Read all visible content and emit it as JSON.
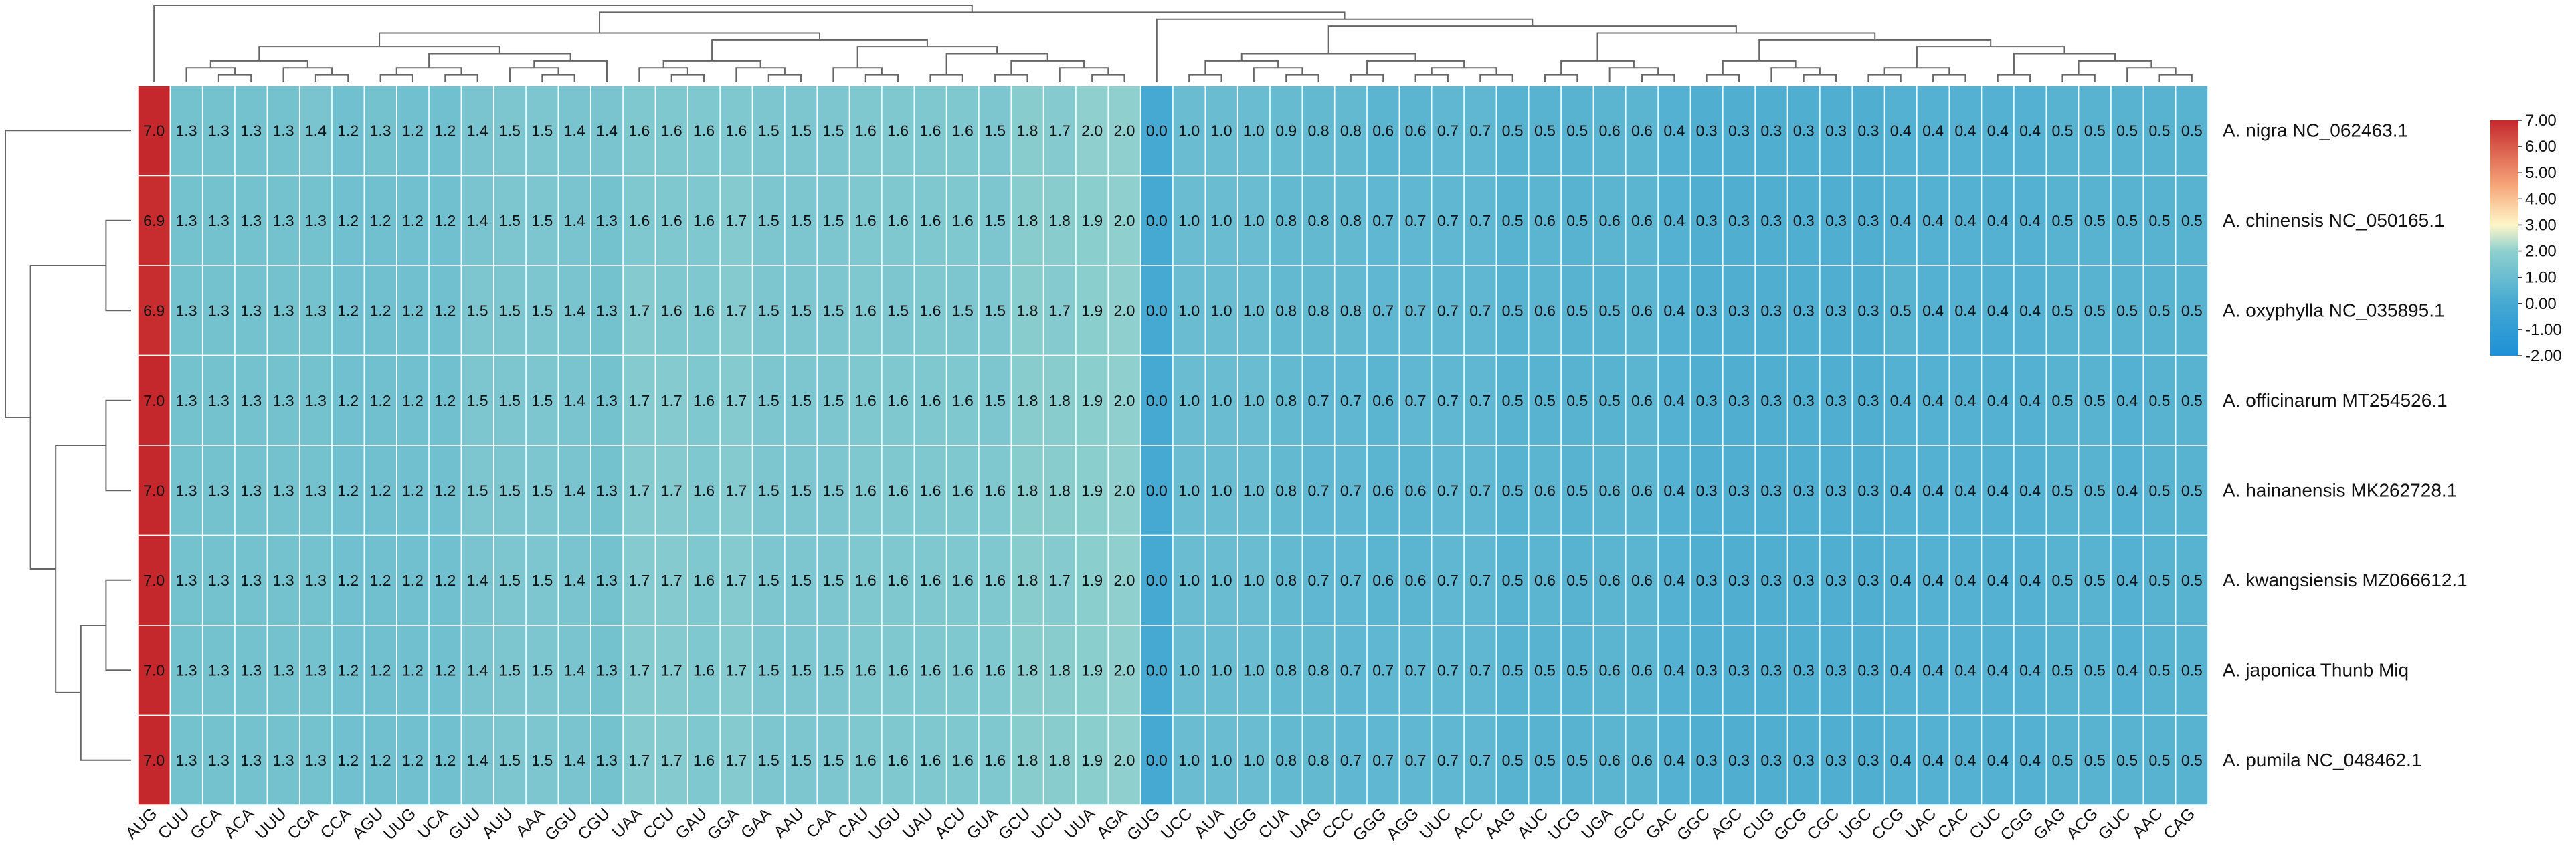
{
  "chart_data": {
    "type": "heatmap",
    "title": "",
    "xlabel": "",
    "ylabel": "",
    "columns": [
      "AUG",
      "CUU",
      "GCA",
      "ACA",
      "UUU",
      "CGA",
      "CCA",
      "AGU",
      "UUG",
      "UCA",
      "GUU",
      "AUU",
      "AAA",
      "GGU",
      "CGU",
      "UAA",
      "CCU",
      "GAU",
      "GGA",
      "GAA",
      "AAU",
      "CAA",
      "CAU",
      "UGU",
      "UAU",
      "ACU",
      "GUA",
      "GCU",
      "UCU",
      "UUA",
      "AGA",
      "GUG",
      "UCC",
      "AUA",
      "UGG",
      "CUA",
      "UAG",
      "CCC",
      "GGG",
      "AGG",
      "UUC",
      "ACC",
      "AAG",
      "AUC",
      "UCG",
      "UGA",
      "GCC",
      "GAC",
      "GGC",
      "AGC",
      "CUG",
      "GCG",
      "CGC",
      "UGC",
      "CCG",
      "UAC",
      "CAC",
      "CUC",
      "CGG",
      "GAG",
      "ACG",
      "GUC",
      "AAC",
      "CAG"
    ],
    "rows": [
      "A. nigra NC_062463.1",
      "A. chinensis NC_050165.1",
      "A. oxyphylla NC_035895.1",
      "A. officinarum MT254526.1",
      "A. hainanensis MK262728.1",
      "A. kwangsiensis MZ066612.1",
      "A. japonica Thunb Miq",
      "A. pumila NC_048462.1"
    ],
    "values": [
      [
        7.0,
        1.3,
        1.3,
        1.3,
        1.3,
        1.4,
        1.2,
        1.3,
        1.2,
        1.2,
        1.4,
        1.5,
        1.5,
        1.4,
        1.4,
        1.6,
        1.6,
        1.6,
        1.6,
        1.5,
        1.5,
        1.5,
        1.6,
        1.6,
        1.6,
        1.6,
        1.5,
        1.8,
        1.7,
        2.0,
        2.0,
        0.0,
        1.0,
        1.0,
        1.0,
        0.9,
        0.8,
        0.8,
        0.6,
        0.6,
        0.7,
        0.7,
        0.5,
        0.5,
        0.5,
        0.6,
        0.6,
        0.4,
        0.3,
        0.3,
        0.3,
        0.3,
        0.3,
        0.3,
        0.4,
        0.4,
        0.4,
        0.4,
        0.4,
        0.5,
        0.5,
        0.5,
        0.5,
        0.5
      ],
      [
        6.9,
        1.3,
        1.3,
        1.3,
        1.3,
        1.3,
        1.2,
        1.2,
        1.2,
        1.2,
        1.4,
        1.5,
        1.5,
        1.4,
        1.3,
        1.6,
        1.6,
        1.6,
        1.7,
        1.5,
        1.5,
        1.5,
        1.6,
        1.6,
        1.6,
        1.6,
        1.5,
        1.8,
        1.8,
        1.9,
        2.0,
        0.0,
        1.0,
        1.0,
        1.0,
        0.8,
        0.8,
        0.8,
        0.7,
        0.7,
        0.7,
        0.7,
        0.5,
        0.6,
        0.5,
        0.6,
        0.6,
        0.4,
        0.3,
        0.3,
        0.3,
        0.3,
        0.3,
        0.3,
        0.4,
        0.4,
        0.4,
        0.4,
        0.4,
        0.5,
        0.5,
        0.5,
        0.5,
        0.5
      ],
      [
        6.9,
        1.3,
        1.3,
        1.3,
        1.3,
        1.3,
        1.2,
        1.2,
        1.2,
        1.2,
        1.5,
        1.5,
        1.5,
        1.4,
        1.3,
        1.7,
        1.6,
        1.6,
        1.7,
        1.5,
        1.5,
        1.5,
        1.6,
        1.5,
        1.6,
        1.5,
        1.5,
        1.8,
        1.7,
        1.9,
        2.0,
        0.0,
        1.0,
        1.0,
        1.0,
        0.8,
        0.8,
        0.8,
        0.7,
        0.7,
        0.7,
        0.7,
        0.5,
        0.6,
        0.5,
        0.5,
        0.6,
        0.4,
        0.3,
        0.3,
        0.3,
        0.3,
        0.3,
        0.3,
        0.5,
        0.4,
        0.4,
        0.4,
        0.4,
        0.5,
        0.5,
        0.5,
        0.5,
        0.5
      ],
      [
        7.0,
        1.3,
        1.3,
        1.3,
        1.3,
        1.3,
        1.2,
        1.2,
        1.2,
        1.2,
        1.5,
        1.5,
        1.5,
        1.4,
        1.3,
        1.7,
        1.7,
        1.6,
        1.7,
        1.5,
        1.5,
        1.5,
        1.6,
        1.6,
        1.6,
        1.6,
        1.5,
        1.8,
        1.8,
        1.9,
        2.0,
        0.0,
        1.0,
        1.0,
        1.0,
        0.8,
        0.7,
        0.7,
        0.6,
        0.7,
        0.7,
        0.7,
        0.5,
        0.5,
        0.5,
        0.5,
        0.6,
        0.4,
        0.3,
        0.3,
        0.3,
        0.3,
        0.3,
        0.3,
        0.4,
        0.4,
        0.4,
        0.4,
        0.4,
        0.5,
        0.5,
        0.4,
        0.5,
        0.5
      ],
      [
        7.0,
        1.3,
        1.3,
        1.3,
        1.3,
        1.3,
        1.2,
        1.2,
        1.2,
        1.2,
        1.5,
        1.5,
        1.5,
        1.4,
        1.3,
        1.7,
        1.7,
        1.6,
        1.7,
        1.5,
        1.5,
        1.5,
        1.6,
        1.6,
        1.6,
        1.6,
        1.6,
        1.8,
        1.8,
        1.9,
        2.0,
        0.0,
        1.0,
        1.0,
        1.0,
        0.8,
        0.7,
        0.7,
        0.6,
        0.6,
        0.7,
        0.7,
        0.5,
        0.6,
        0.5,
        0.6,
        0.6,
        0.4,
        0.3,
        0.3,
        0.3,
        0.3,
        0.3,
        0.3,
        0.4,
        0.4,
        0.4,
        0.4,
        0.4,
        0.5,
        0.5,
        0.4,
        0.5,
        0.5
      ],
      [
        7.0,
        1.3,
        1.3,
        1.3,
        1.3,
        1.3,
        1.2,
        1.2,
        1.2,
        1.2,
        1.4,
        1.5,
        1.5,
        1.4,
        1.3,
        1.7,
        1.7,
        1.6,
        1.7,
        1.5,
        1.5,
        1.5,
        1.6,
        1.6,
        1.6,
        1.6,
        1.6,
        1.8,
        1.7,
        1.9,
        2.0,
        0.0,
        1.0,
        1.0,
        1.0,
        0.8,
        0.7,
        0.7,
        0.6,
        0.6,
        0.7,
        0.7,
        0.5,
        0.6,
        0.5,
        0.6,
        0.6,
        0.4,
        0.3,
        0.3,
        0.3,
        0.3,
        0.3,
        0.3,
        0.4,
        0.4,
        0.4,
        0.4,
        0.4,
        0.5,
        0.5,
        0.4,
        0.5,
        0.5
      ],
      [
        7.0,
        1.3,
        1.3,
        1.3,
        1.3,
        1.3,
        1.2,
        1.2,
        1.2,
        1.2,
        1.4,
        1.5,
        1.5,
        1.4,
        1.3,
        1.7,
        1.7,
        1.6,
        1.7,
        1.5,
        1.5,
        1.5,
        1.6,
        1.6,
        1.6,
        1.6,
        1.6,
        1.8,
        1.8,
        1.9,
        2.0,
        0.0,
        1.0,
        1.0,
        1.0,
        0.8,
        0.8,
        0.7,
        0.7,
        0.7,
        0.7,
        0.7,
        0.5,
        0.5,
        0.5,
        0.6,
        0.6,
        0.4,
        0.3,
        0.3,
        0.3,
        0.3,
        0.3,
        0.3,
        0.4,
        0.4,
        0.4,
        0.4,
        0.4,
        0.5,
        0.5,
        0.4,
        0.5,
        0.5
      ],
      [
        7.0,
        1.3,
        1.3,
        1.3,
        1.3,
        1.3,
        1.2,
        1.2,
        1.2,
        1.2,
        1.4,
        1.5,
        1.5,
        1.4,
        1.3,
        1.7,
        1.7,
        1.6,
        1.7,
        1.5,
        1.5,
        1.5,
        1.6,
        1.6,
        1.6,
        1.6,
        1.6,
        1.8,
        1.8,
        1.9,
        2.0,
        0.0,
        1.0,
        1.0,
        1.0,
        0.8,
        0.8,
        0.7,
        0.7,
        0.7,
        0.7,
        0.7,
        0.5,
        0.5,
        0.5,
        0.6,
        0.6,
        0.4,
        0.3,
        0.3,
        0.3,
        0.3,
        0.3,
        0.3,
        0.4,
        0.4,
        0.4,
        0.4,
        0.4,
        0.5,
        0.5,
        0.5,
        0.5,
        0.5
      ]
    ],
    "color_scale": {
      "range": [
        -2.0,
        7.0
      ],
      "stops": [
        {
          "value": -2.0,
          "color": "#1e90d6"
        },
        {
          "value": 0.0,
          "color": "#45a9d2"
        },
        {
          "value": 2.0,
          "color": "#8fd0ce"
        },
        {
          "value": 3.0,
          "color": "#fff6c8"
        },
        {
          "value": 4.5,
          "color": "#f6a77a"
        },
        {
          "value": 7.0,
          "color": "#c5282c"
        }
      ],
      "ticks": [
        "7.00",
        "6.00",
        "5.00",
        "4.00",
        "3.00",
        "2.00",
        "1.00",
        "0.00",
        "-1.00",
        "-2.00"
      ]
    },
    "legend_position": "right",
    "grid": true,
    "cell_labels": true,
    "row_dendrogram": true,
    "column_dendrogram": true
  }
}
